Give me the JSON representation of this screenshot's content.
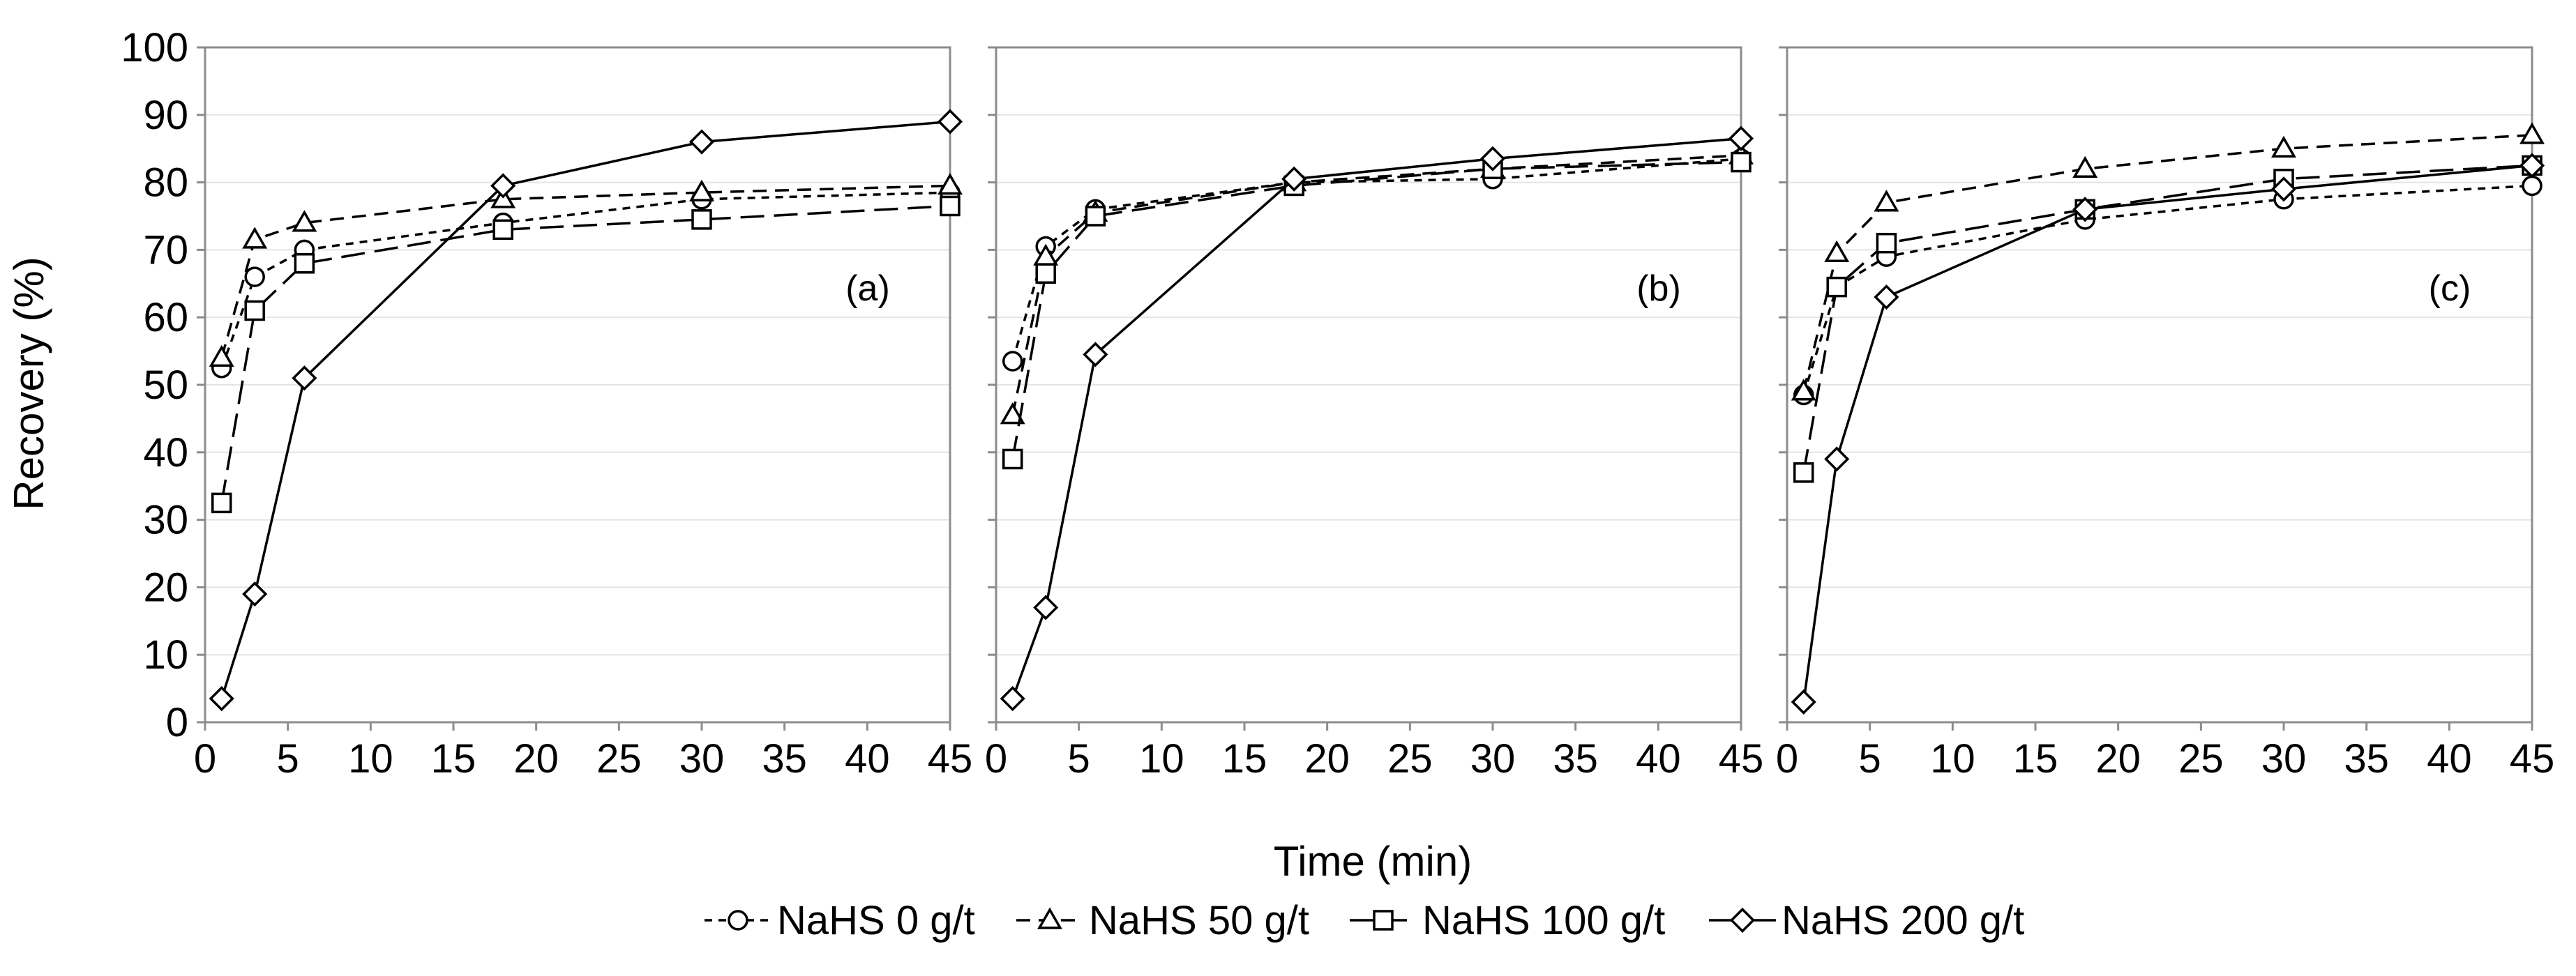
{
  "chart_data": {
    "type": "line",
    "x": [
      1,
      3,
      6,
      18,
      30,
      45
    ],
    "xlabel": "Time (min)",
    "ylabel": "Recovery (%)",
    "xlim": [
      0,
      45
    ],
    "ylim": [
      0,
      100
    ],
    "xticks": [
      0,
      5,
      10,
      15,
      20,
      25,
      30,
      35,
      40,
      45
    ],
    "yticks": [
      0,
      10,
      20,
      30,
      40,
      50,
      60,
      70,
      80,
      90,
      100
    ],
    "grid": true,
    "legend_position": "bottom",
    "legend": [
      {
        "name": "NaHS 0 g/t",
        "marker": "circle",
        "dash": "short-dash"
      },
      {
        "name": "NaHS 50 g/t",
        "marker": "triangle",
        "dash": "dash"
      },
      {
        "name": "NaHS 100 g/t",
        "marker": "square",
        "dash": "long-dash"
      },
      {
        "name": "NaHS 200 g/t",
        "marker": "diamond",
        "dash": "solid"
      }
    ],
    "panels": [
      {
        "label": "(a)",
        "series": [
          {
            "name": "NaHS 0 g/t",
            "values": [
              52.5,
              66,
              70,
              74,
              77.5,
              78.5
            ]
          },
          {
            "name": "NaHS 50 g/t",
            "values": [
              54,
              71.5,
              74,
              77.5,
              78.5,
              79.5
            ]
          },
          {
            "name": "NaHS 100 g/t",
            "values": [
              32.5,
              61,
              68,
              73,
              74.5,
              76.5
            ]
          },
          {
            "name": "NaHS 200 g/t",
            "values": [
              3.5,
              19,
              51,
              79.5,
              86,
              89
            ]
          }
        ]
      },
      {
        "label": "(b)",
        "series": [
          {
            "name": "NaHS 0 g/t",
            "values": [
              53.5,
              70.5,
              76,
              80,
              80.5,
              83.5
            ]
          },
          {
            "name": "NaHS 50 g/t",
            "values": [
              45.5,
              69,
              75.5,
              80,
              82,
              84
            ]
          },
          {
            "name": "NaHS 100 g/t",
            "values": [
              39,
              66.5,
              75,
              79.5,
              82,
              83
            ]
          },
          {
            "name": "NaHS 200 g/t",
            "values": [
              3.5,
              17,
              54.5,
              80.5,
              83.5,
              86.5
            ]
          }
        ]
      },
      {
        "label": "(c)",
        "series": [
          {
            "name": "NaHS 0 g/t",
            "values": [
              48.5,
              64.5,
              69,
              74.5,
              77.5,
              79.5
            ]
          },
          {
            "name": "NaHS 50 g/t",
            "values": [
              49,
              69.5,
              77,
              82,
              85,
              87
            ]
          },
          {
            "name": "NaHS 100 g/t",
            "values": [
              37,
              64.5,
              71,
              76,
              80.5,
              82.5
            ]
          },
          {
            "name": "NaHS 200 g/t",
            "values": [
              3,
              39,
              63,
              76,
              79,
              82.5
            ]
          }
        ]
      }
    ]
  }
}
